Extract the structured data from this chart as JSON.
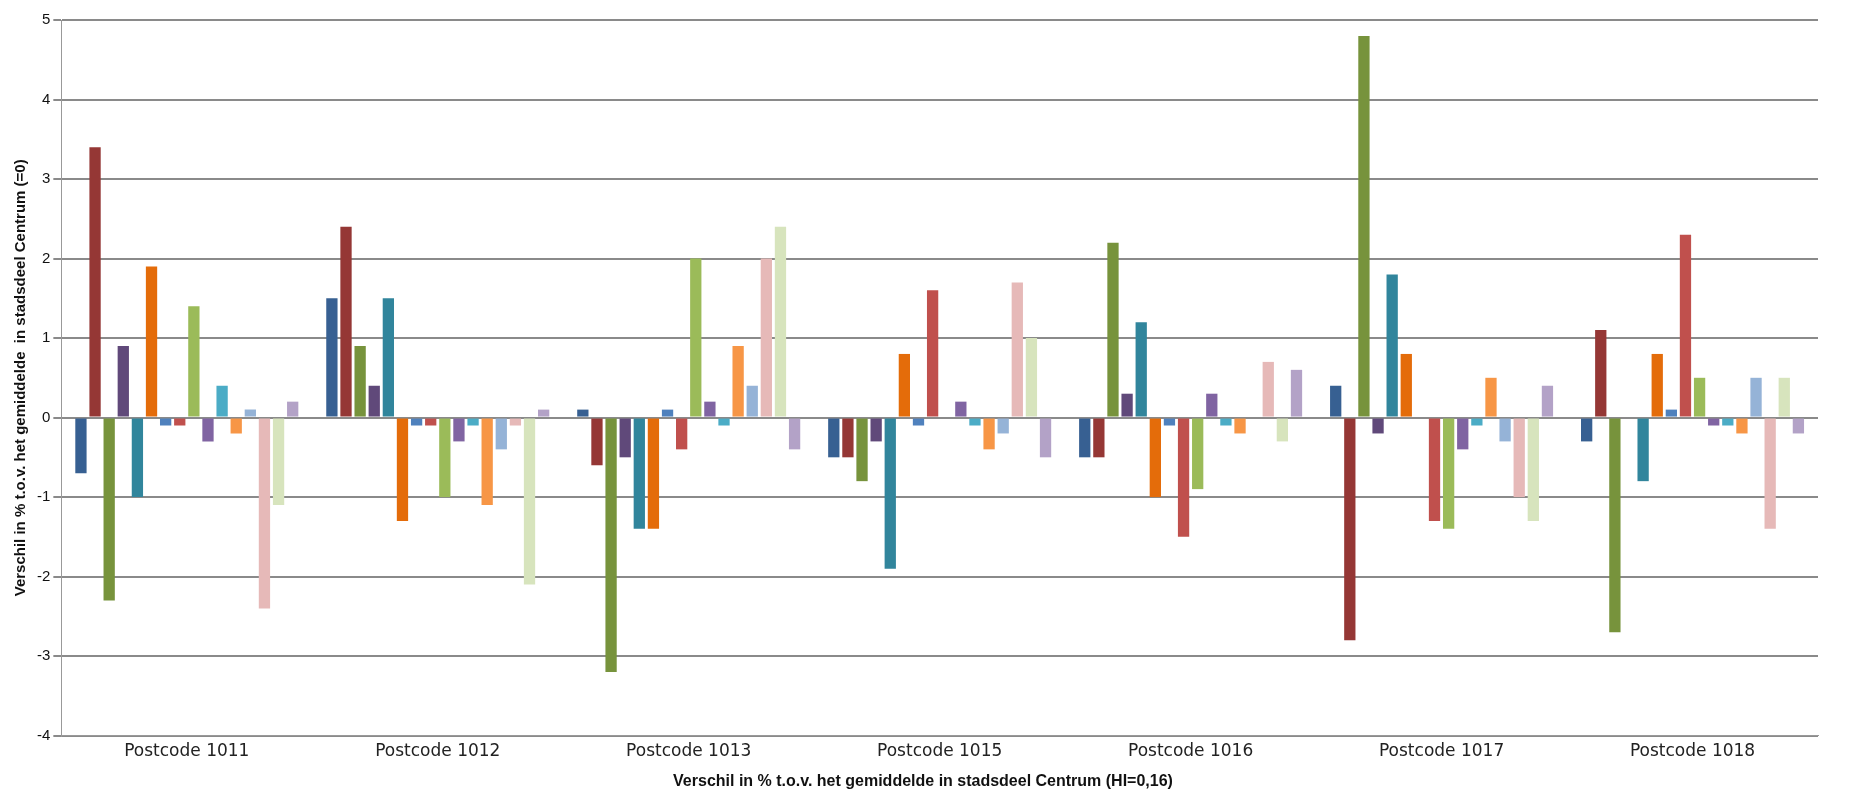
{
  "chart_data": {
    "type": "bar",
    "xlabel": "Verschil in % t.o.v. het gemiddelde in stadsdeel Centrum (HI=0,16)",
    "ylabel": "Verschil in % t.o.v. het gemiddelde  in stadsdeel Centrum (=0)",
    "categories": [
      "Postcode 1011",
      "Postcode 1012",
      "Postcode 1013",
      "Postcode 1015",
      "Postcode 1016",
      "Postcode 1017",
      "Postcode 1018"
    ],
    "series": [
      {
        "color": "#376092",
        "values": [
          -0.7,
          1.5,
          0.1,
          -0.5,
          -0.5,
          0.4,
          -0.3
        ]
      },
      {
        "color": "#953735",
        "values": [
          3.4,
          2.4,
          -0.6,
          -0.5,
          -0.5,
          -2.8,
          1.1
        ]
      },
      {
        "color": "#77933c",
        "values": [
          -2.3,
          0.9,
          -3.2,
          -0.8,
          2.2,
          4.8,
          -2.7
        ]
      },
      {
        "color": "#60497a",
        "values": [
          0.9,
          0.4,
          -0.5,
          -0.3,
          0.3,
          -0.2,
          0
        ]
      },
      {
        "color": "#31859c",
        "values": [
          -1.0,
          1.5,
          -1.4,
          -1.9,
          1.2,
          1.8,
          -0.8
        ]
      },
      {
        "color": "#e46c0a",
        "values": [
          1.9,
          -1.3,
          -1.4,
          0.8,
          -1.0,
          0.8,
          0.8
        ]
      },
      {
        "color": "#4f81bd",
        "values": [
          -0.1,
          -0.1,
          0.1,
          -0.1,
          -0.1,
          0,
          0.1
        ]
      },
      {
        "color": "#c0504d",
        "values": [
          -0.1,
          -0.1,
          -0.4,
          1.6,
          -1.5,
          -1.3,
          2.3
        ]
      },
      {
        "color": "#9bbb59",
        "values": [
          1.4,
          -1.0,
          2.0,
          0,
          -0.9,
          -1.4,
          0.5
        ]
      },
      {
        "color": "#8064a2",
        "values": [
          -0.3,
          -0.3,
          0.2,
          0.2,
          0.3,
          -0.4,
          -0.1
        ]
      },
      {
        "color": "#4bacc6",
        "values": [
          0.4,
          -0.1,
          -0.1,
          -0.1,
          -0.1,
          -0.1,
          -0.1
        ]
      },
      {
        "color": "#f79646",
        "values": [
          -0.2,
          -1.1,
          0.9,
          -0.4,
          -0.2,
          0.5,
          -0.2
        ]
      },
      {
        "color": "#95b3d7",
        "values": [
          0.1,
          -0.4,
          0.4,
          -0.2,
          0,
          -0.3,
          0.5
        ]
      },
      {
        "color": "#e6b9b8",
        "values": [
          -2.4,
          -0.1,
          2.0,
          1.7,
          0.7,
          -1.0,
          -1.4
        ]
      },
      {
        "color": "#d7e4bd",
        "values": [
          -1.1,
          -2.1,
          2.4,
          1.0,
          -0.3,
          -1.3,
          0.5
        ]
      },
      {
        "color": "#b3a2c7",
        "values": [
          0.2,
          0.1,
          -0.4,
          -0.5,
          0.6,
          0.4,
          -0.2
        ]
      }
    ],
    "ylim": [
      -4,
      5
    ],
    "yticks": [
      -4,
      -3,
      -2,
      -1,
      0,
      1,
      2,
      3,
      4,
      5
    ],
    "grid": "y",
    "legend": false
  }
}
